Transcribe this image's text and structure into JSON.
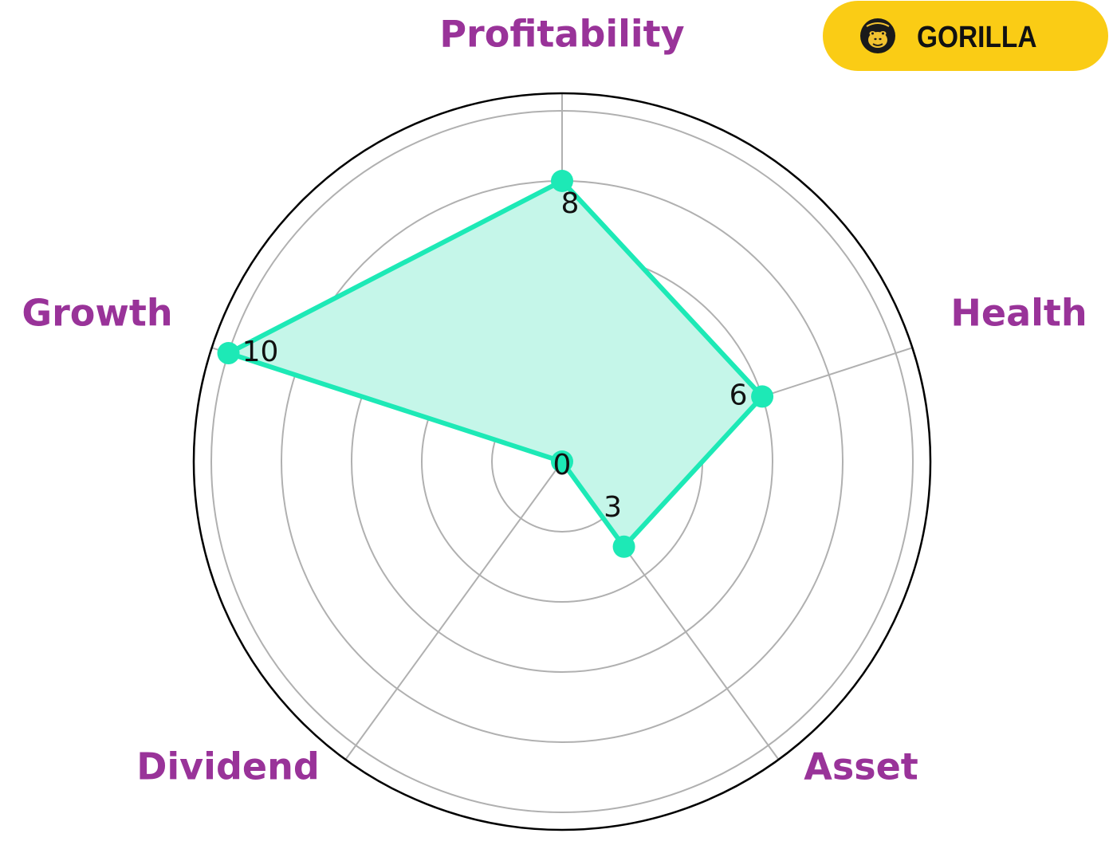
{
  "badge": {
    "text": "GORILLA",
    "icon": "gorilla-logo-icon",
    "background": "#FACC15"
  },
  "chart_data": {
    "type": "radar",
    "categories": [
      "Profitability",
      "Health",
      "Asset",
      "Dividend",
      "Growth"
    ],
    "values": [
      8,
      6,
      3,
      0,
      10
    ],
    "value_labels": [
      "8",
      "6",
      "3",
      "0",
      "10"
    ],
    "rlim": [
      0,
      10.5
    ],
    "grid_rings": [
      2,
      4,
      6,
      8,
      10
    ],
    "grid": true,
    "colors": {
      "series": "#1DE9B6",
      "fill": "#C5F6E9",
      "category_labels": "#993399",
      "grid": "#B0B0B0",
      "outer_ring": "#000000"
    }
  }
}
